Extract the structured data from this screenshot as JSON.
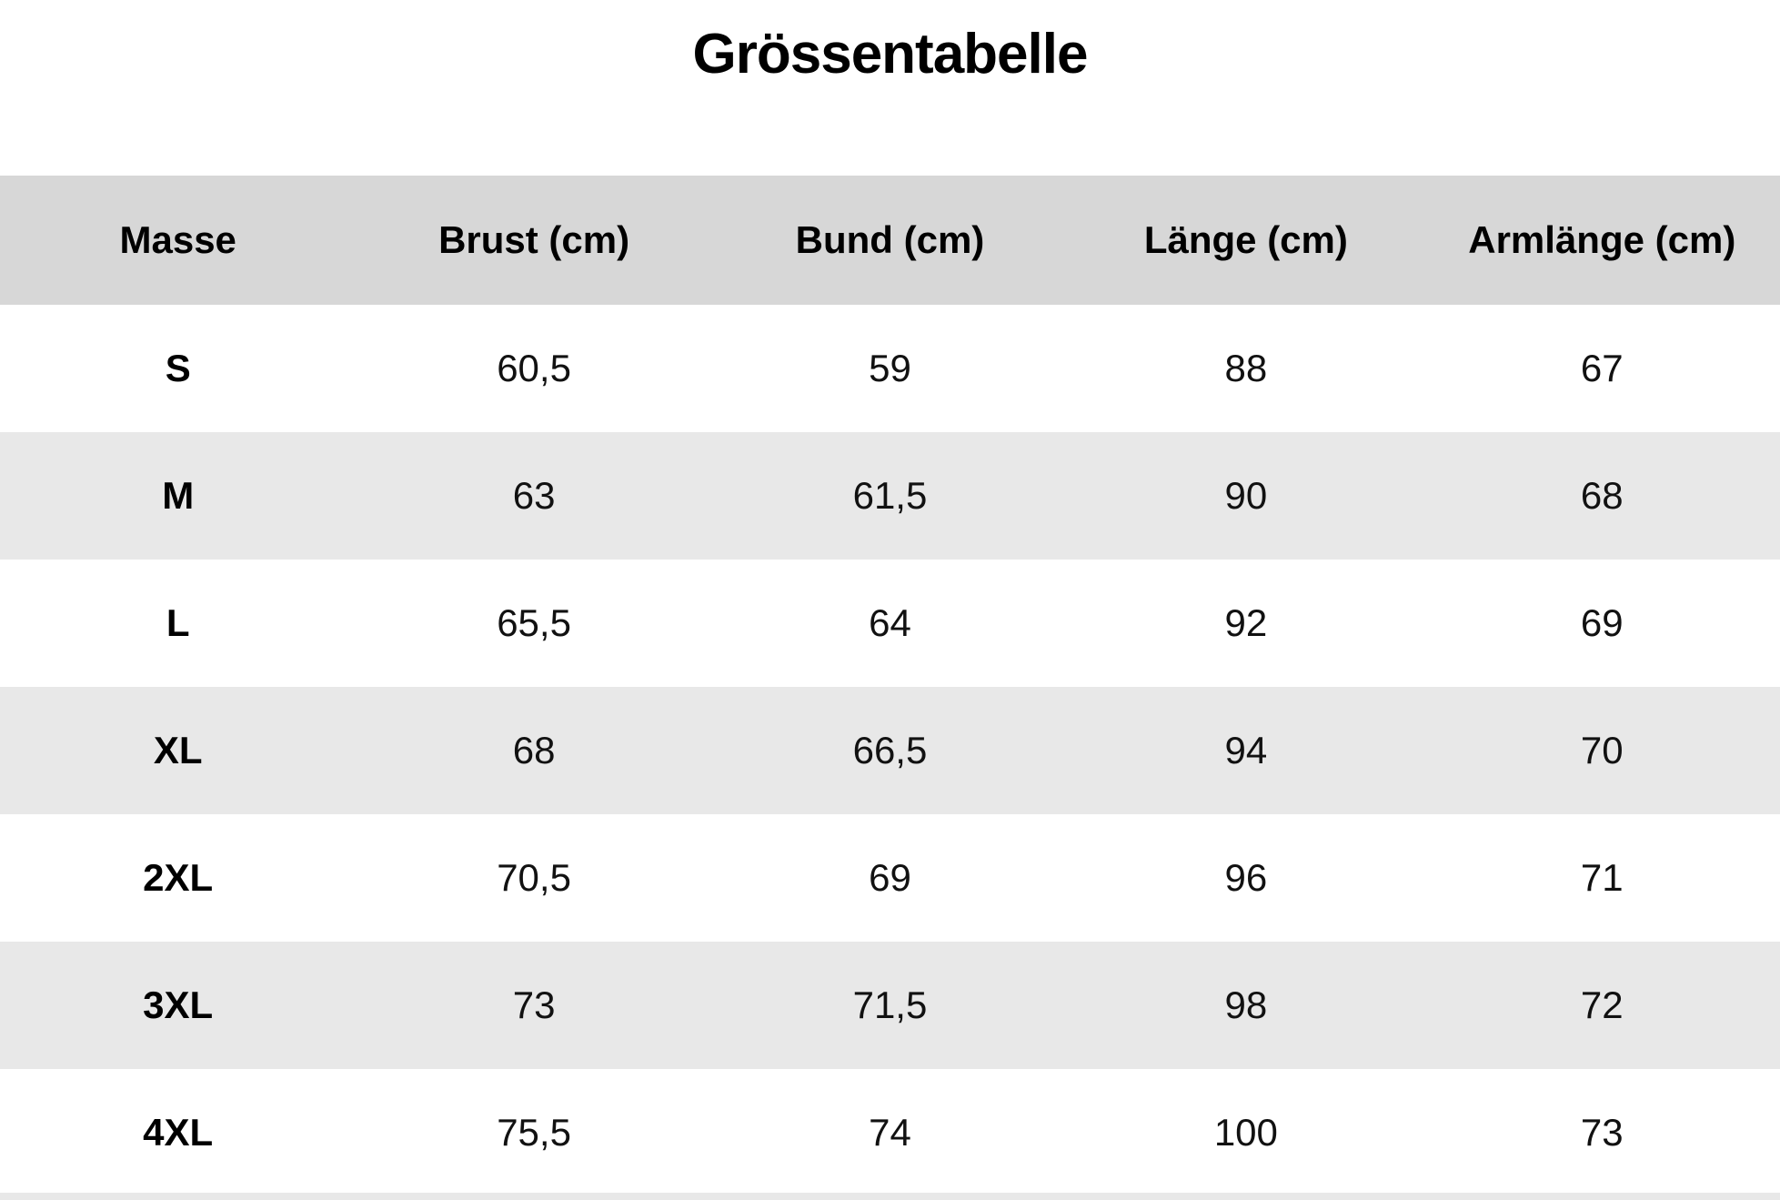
{
  "title": "Grössentabelle",
  "colors": {
    "page_bg": "#ffffff",
    "header_bg": "#d7d7d7",
    "stripe_bg": "#e8e8e8",
    "text": "#111111"
  },
  "chart_data": {
    "type": "table",
    "title": "Grössentabelle",
    "columns": [
      "Masse",
      "Brust (cm)",
      "Bund (cm)",
      "Länge (cm)",
      "Armlänge (cm)"
    ],
    "rows": [
      [
        "S",
        "60,5",
        "59",
        "88",
        "67"
      ],
      [
        "M",
        "63",
        "61,5",
        "90",
        "68"
      ],
      [
        "L",
        "65,5",
        "64",
        "92",
        "69"
      ],
      [
        "XL",
        "68",
        "66,5",
        "94",
        "70"
      ],
      [
        "2XL",
        "70,5",
        "69",
        "96",
        "71"
      ],
      [
        "3XL",
        "73",
        "71,5",
        "98",
        "72"
      ],
      [
        "4XL",
        "75,5",
        "74",
        "100",
        "73"
      ]
    ],
    "layout": {
      "columns_equal_width": true,
      "row_striping": "white / light-gray alternating, header darker gray",
      "text_align": "center"
    }
  }
}
